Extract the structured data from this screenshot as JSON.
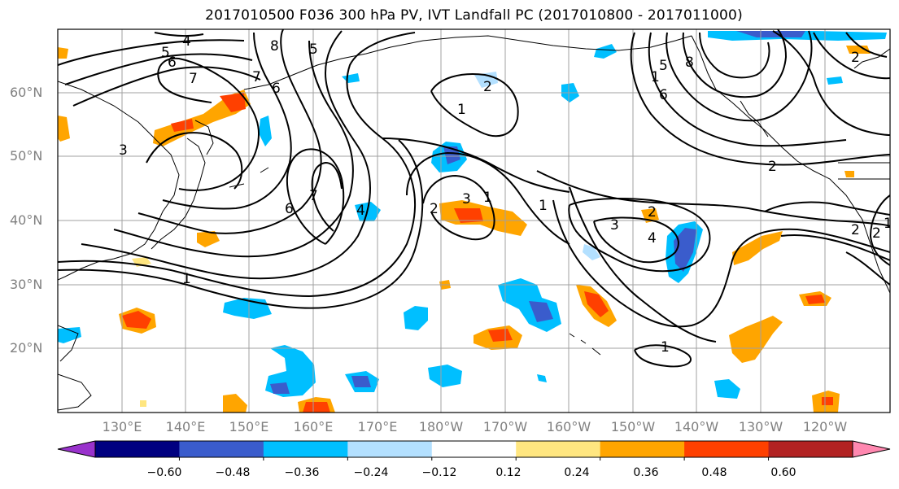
{
  "title": "2017010500 F036 300 hPa PV, IVT Landfall PC (2017010800 - 2017011000)",
  "lat_labels": [
    "60°N",
    "50°N",
    "40°N",
    "30°N",
    "20°N"
  ],
  "lon_labels": [
    "130°E",
    "140°E",
    "150°E",
    "160°E",
    "170°E",
    "180°W",
    "170°W",
    "160°W",
    "150°W",
    "140°W",
    "130°W",
    "120°W"
  ],
  "colorbar": {
    "colors": [
      "#9932cc",
      "#000080",
      "#3a5ccc",
      "#00bfff",
      "#b3e0ff",
      "#ffffff",
      "#ffe680",
      "#ffa500",
      "#ff4000",
      "#b22222",
      "#ff88b0"
    ],
    "ticks": [
      "−0.60",
      "−0.48",
      "−0.36",
      "−0.24",
      "−0.12",
      "0.12",
      "0.24",
      "0.36",
      "0.48",
      "0.60"
    ]
  },
  "contour_labels": [
    "4",
    "5",
    "6",
    "7",
    "8",
    "5",
    "6",
    "7",
    "3",
    "1",
    "6",
    "7",
    "4",
    "1",
    "2",
    "1",
    "2",
    "3",
    "1",
    "1",
    "1",
    "3",
    "4",
    "2",
    "1",
    "5",
    "6",
    "8",
    "2",
    "2",
    "2",
    "2"
  ]
}
